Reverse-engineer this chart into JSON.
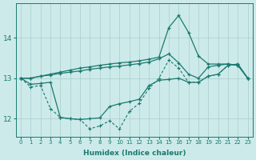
{
  "xlabel": "Humidex (Indice chaleur)",
  "x": [
    0,
    1,
    2,
    3,
    4,
    5,
    6,
    7,
    8,
    9,
    10,
    11,
    12,
    13,
    14,
    15,
    16,
    17,
    18,
    19,
    20,
    21,
    22,
    23
  ],
  "line_top": [
    13.0,
    13.0,
    13.05,
    13.1,
    13.15,
    13.2,
    13.25,
    13.28,
    13.32,
    13.35,
    13.38,
    13.4,
    13.43,
    13.47,
    13.52,
    14.25,
    14.55,
    14.13,
    13.55,
    13.35,
    13.35,
    13.35,
    13.32,
    13.0
  ],
  "line_mid": [
    13.0,
    13.0,
    13.05,
    13.08,
    13.12,
    13.15,
    13.18,
    13.22,
    13.25,
    13.28,
    13.3,
    13.33,
    13.36,
    13.4,
    13.48,
    13.6,
    13.38,
    13.1,
    13.0,
    13.28,
    13.32,
    13.35,
    13.32,
    13.0
  ],
  "line_bot": [
    13.0,
    12.85,
    12.87,
    12.9,
    12.03,
    12.0,
    11.98,
    12.0,
    12.02,
    12.3,
    12.37,
    12.42,
    12.48,
    12.82,
    12.95,
    12.97,
    13.0,
    12.9,
    12.9,
    13.05,
    13.1,
    13.32,
    13.35,
    13.0
  ],
  "line_min_dotted": [
    13.0,
    12.78,
    12.82,
    12.25,
    12.03,
    12.0,
    11.98,
    11.75,
    11.82,
    11.95,
    11.75,
    12.18,
    12.38,
    12.75,
    13.0,
    13.45,
    13.25,
    12.9,
    12.9,
    13.05,
    13.1,
    13.32,
    13.35,
    13.0
  ],
  "color": "#1a7a6e",
  "bg_color": "#cdeaea",
  "grid_color": "#aacccc",
  "ylim": [
    11.55,
    14.85
  ],
  "yticks": [
    12,
    13,
    14
  ],
  "xlim": [
    -0.5,
    23.5
  ]
}
